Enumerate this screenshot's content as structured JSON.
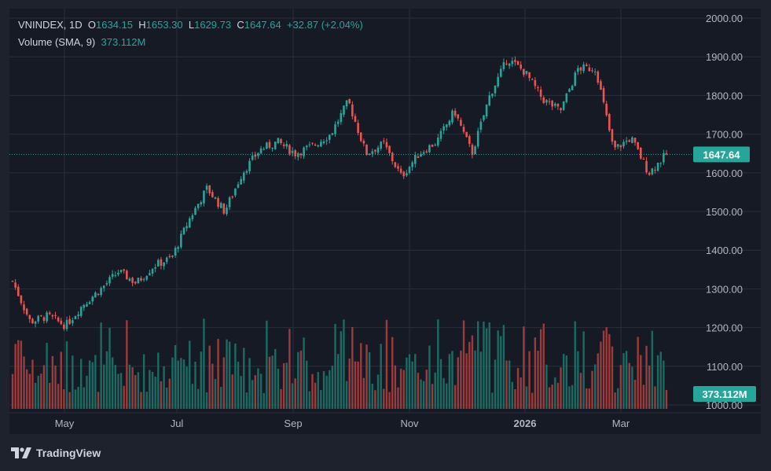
{
  "legend": {
    "symbol": "VNINDEX",
    "interval": "1D",
    "o_label": "O",
    "open": "1634.15",
    "h_label": "H",
    "high": "1653.30",
    "l_label": "L",
    "low": "1629.73",
    "c_label": "C",
    "close": "1647.64",
    "change": "+32.87 (+2.04%)",
    "volume_label": "Volume (SMA, 9)",
    "volume_value": "373.112M"
  },
  "brand": "TradingView",
  "colors": {
    "up": "#26a69a",
    "down": "#ef5350",
    "up_vol": "#1b6b63",
    "down_vol": "#9b3b3b",
    "grid": "#2a2e39",
    "bg": "#161a25"
  },
  "chart_data": {
    "type": "candlestick",
    "ylim": [
      1000,
      2000
    ],
    "y_ticks": [
      "2000.00",
      "1900.00",
      "1800.00",
      "1700.00",
      "1600.00",
      "1500.00",
      "1400.00",
      "1300.00",
      "1200.00",
      "1100.00",
      "1000.00"
    ],
    "x_ticks": [
      "May",
      "Jul",
      "Sep",
      "Nov",
      "2026",
      "Mar"
    ],
    "last_price_label": "1647.64",
    "last_price": 1647.64,
    "volume_tag": "373.112M",
    "approx_closes": [
      {
        "date": "Apr",
        "close": 1320
      },
      {
        "date": "Apr",
        "close": 1215
      },
      {
        "date": "Apr",
        "close": 1230
      },
      {
        "date": "May",
        "close": 1205
      },
      {
        "date": "May",
        "close": 1260
      },
      {
        "date": "May",
        "close": 1300
      },
      {
        "date": "Jun",
        "close": 1345
      },
      {
        "date": "Jun",
        "close": 1315
      },
      {
        "date": "Jun",
        "close": 1360
      },
      {
        "date": "Jul",
        "close": 1380
      },
      {
        "date": "Jul",
        "close": 1480
      },
      {
        "date": "Jul",
        "close": 1560
      },
      {
        "date": "Aug",
        "close": 1500
      },
      {
        "date": "Aug",
        "close": 1600
      },
      {
        "date": "Aug",
        "close": 1660
      },
      {
        "date": "Sep",
        "close": 1680
      },
      {
        "date": "Sep",
        "close": 1650
      },
      {
        "date": "Sep",
        "close": 1670
      },
      {
        "date": "Oct",
        "close": 1700
      },
      {
        "date": "Oct",
        "close": 1785
      },
      {
        "date": "Oct",
        "close": 1650
      },
      {
        "date": "Nov",
        "close": 1675
      },
      {
        "date": "Nov",
        "close": 1590
      },
      {
        "date": "Nov",
        "close": 1650
      },
      {
        "date": "Dec",
        "close": 1680
      },
      {
        "date": "Dec",
        "close": 1760
      },
      {
        "date": "Dec",
        "close": 1650
      },
      {
        "date": "2026",
        "close": 1800
      },
      {
        "date": "2026",
        "close": 1895
      },
      {
        "date": "2026",
        "close": 1860
      },
      {
        "date": "Feb",
        "close": 1790
      },
      {
        "date": "Feb",
        "close": 1760
      },
      {
        "date": "Feb",
        "close": 1870
      },
      {
        "date": "Mar",
        "close": 1870
      },
      {
        "date": "Mar",
        "close": 1660
      },
      {
        "date": "Mar",
        "close": 1690
      },
      {
        "date": "Mar",
        "close": 1600
      },
      {
        "date": "Mar",
        "close": 1647.64
      }
    ]
  }
}
